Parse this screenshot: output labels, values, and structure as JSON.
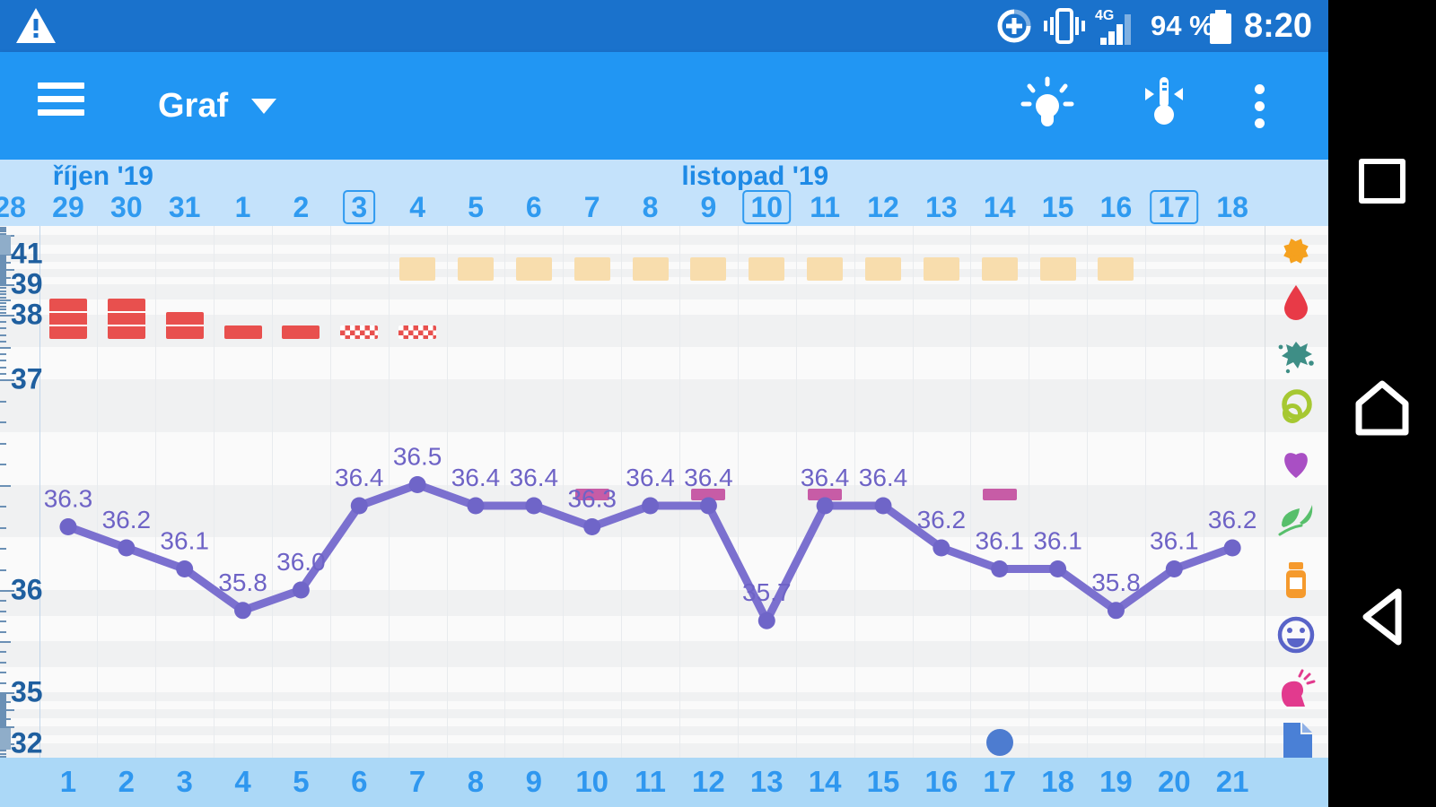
{
  "status_bar": {
    "time": "8:20",
    "battery_percent": "94 %",
    "network": "4G",
    "icons": [
      "warning-triangle",
      "data-saver",
      "vibrate",
      "signal",
      "battery"
    ]
  },
  "app_bar": {
    "title": "Graf",
    "actions": [
      "menu",
      "tips-bulb",
      "thermometer",
      "overflow-menu"
    ]
  },
  "chart_data": {
    "type": "line",
    "title": "Graf (basal temperature cycle chart)",
    "months": [
      {
        "label": "říjen '19",
        "center_date_index": 1.6
      },
      {
        "label": "listopad '19",
        "center_date_index": 12.8
      }
    ],
    "dates": [
      "28",
      "29",
      "30",
      "31",
      "1",
      "2",
      "3",
      "4",
      "5",
      "6",
      "7",
      "8",
      "9",
      "10",
      "11",
      "12",
      "13",
      "14",
      "15",
      "16",
      "17",
      "18"
    ],
    "boxed_date_indices": [
      6,
      13,
      20
    ],
    "cycle_days": [
      "1",
      "2",
      "3",
      "4",
      "5",
      "6",
      "7",
      "8",
      "9",
      "10",
      "11",
      "12",
      "13",
      "14",
      "15",
      "16",
      "17",
      "18",
      "19",
      "20",
      "21"
    ],
    "temperatures_c": [
      36.3,
      36.2,
      36.1,
      35.8,
      36.0,
      36.4,
      36.5,
      36.4,
      36.4,
      36.3,
      36.4,
      36.4,
      35.7,
      36.4,
      36.4,
      36.2,
      36.1,
      36.1,
      35.8,
      36.1,
      36.2
    ],
    "ylim": [
      32,
      42
    ],
    "y_axis_tick_labels": [
      41,
      39,
      38,
      37,
      36,
      35,
      32
    ],
    "menstruation": [
      {
        "cycle_day": 1,
        "flow": 3
      },
      {
        "cycle_day": 2,
        "flow": 3
      },
      {
        "cycle_day": 3,
        "flow": 2
      },
      {
        "cycle_day": 4,
        "flow": 1
      },
      {
        "cycle_day": 5,
        "flow": 1
      },
      {
        "cycle_day": 6,
        "flow": "spotting"
      },
      {
        "cycle_day": 7,
        "flow": "spotting"
      }
    ],
    "beige_marker_cycle_days": [
      7,
      8,
      9,
      10,
      11,
      12,
      13,
      14,
      15,
      16,
      17,
      18,
      19
    ],
    "pink_marker_cycle_days": [
      10,
      12,
      14,
      17
    ],
    "blue_dot_cycle_day": 17,
    "colors": {
      "line": "#7b70cf",
      "point": "#6f65c8",
      "value_label": "#6e63c6",
      "menstruation": "#e8504e",
      "beige_marker": "#f8ddad",
      "pink_marker": "#c75ca6",
      "blue_dot": "#4d7cd0",
      "accent": "#2196f3"
    }
  },
  "side_icons": [
    {
      "name": "flower-icon"
    },
    {
      "name": "drop-icon"
    },
    {
      "name": "splat-icon"
    },
    {
      "name": "rings-icon"
    },
    {
      "name": "heart-icon"
    },
    {
      "name": "leaf-icon"
    },
    {
      "name": "medicine-icon"
    },
    {
      "name": "smiley-icon"
    },
    {
      "name": "pain-icon"
    },
    {
      "name": "note-icon"
    },
    {
      "name": "sync-icon"
    }
  ],
  "nav_bar": {
    "buttons": [
      "recents",
      "home",
      "back"
    ]
  }
}
